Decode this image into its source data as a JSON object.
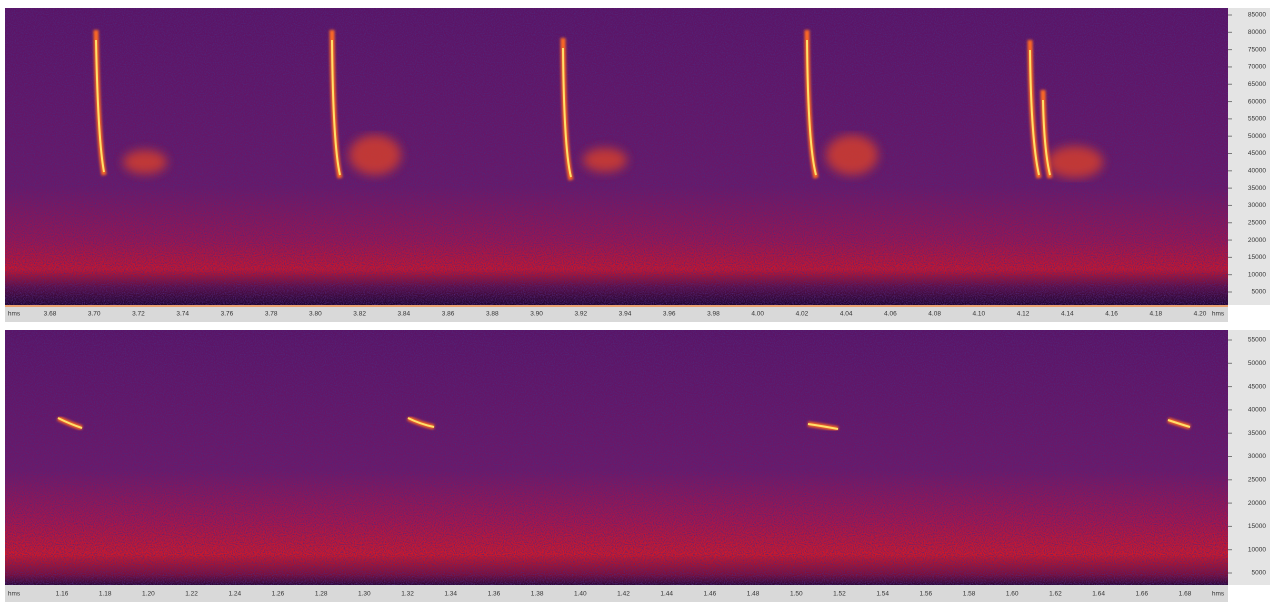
{
  "panels": [
    {
      "x_labels": [
        "hms",
        "3.68",
        "3.70",
        "3.72",
        "3.74",
        "3.76",
        "3.78",
        "3.80",
        "3.82",
        "3.84",
        "3.86",
        "3.88",
        "3.90",
        "3.92",
        "3.94",
        "3.96",
        "3.98",
        "4.00",
        "4.02",
        "4.04",
        "4.06",
        "4.08",
        "4.10",
        "4.12",
        "4.14",
        "4.16",
        "4.18",
        "4.20",
        "hms"
      ],
      "y_labels": [
        "85000",
        "80000",
        "75000",
        "70000",
        "65000",
        "60000",
        "55000",
        "50000",
        "45000",
        "40000",
        "35000",
        "30000",
        "25000",
        "20000",
        "15000",
        "10000",
        "5000"
      ]
    },
    {
      "x_labels": [
        "hms",
        "1.16",
        "1.18",
        "1.20",
        "1.22",
        "1.24",
        "1.26",
        "1.28",
        "1.30",
        "1.32",
        "1.34",
        "1.36",
        "1.38",
        "1.40",
        "1.42",
        "1.44",
        "1.46",
        "1.48",
        "1.50",
        "1.52",
        "1.54",
        "1.56",
        "1.58",
        "1.60",
        "1.62",
        "1.64",
        "1.66",
        "1.68",
        "hms"
      ],
      "y_labels": [
        "55000",
        "50000",
        "45000",
        "40000",
        "35000",
        "30000",
        "25000",
        "20000",
        "15000",
        "10000",
        "5000"
      ]
    }
  ]
}
